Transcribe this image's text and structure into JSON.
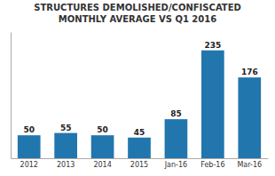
{
  "chart_data": {
    "type": "bar",
    "title": "STRUCTURES DEMOLISHED/CONFISCATED",
    "subtitle": "MONTHLY AVERAGE VS Q1 2016",
    "categories": [
      "2012",
      "2013",
      "2014",
      "2015",
      "Jan-16",
      "Feb-16",
      "Mar-16"
    ],
    "values": [
      50,
      55,
      50,
      45,
      85,
      235,
      176
    ],
    "color": "#2176AE",
    "ylim": [
      0,
      275
    ],
    "grid": false,
    "data_labels": true,
    "tick_labels": "x"
  }
}
